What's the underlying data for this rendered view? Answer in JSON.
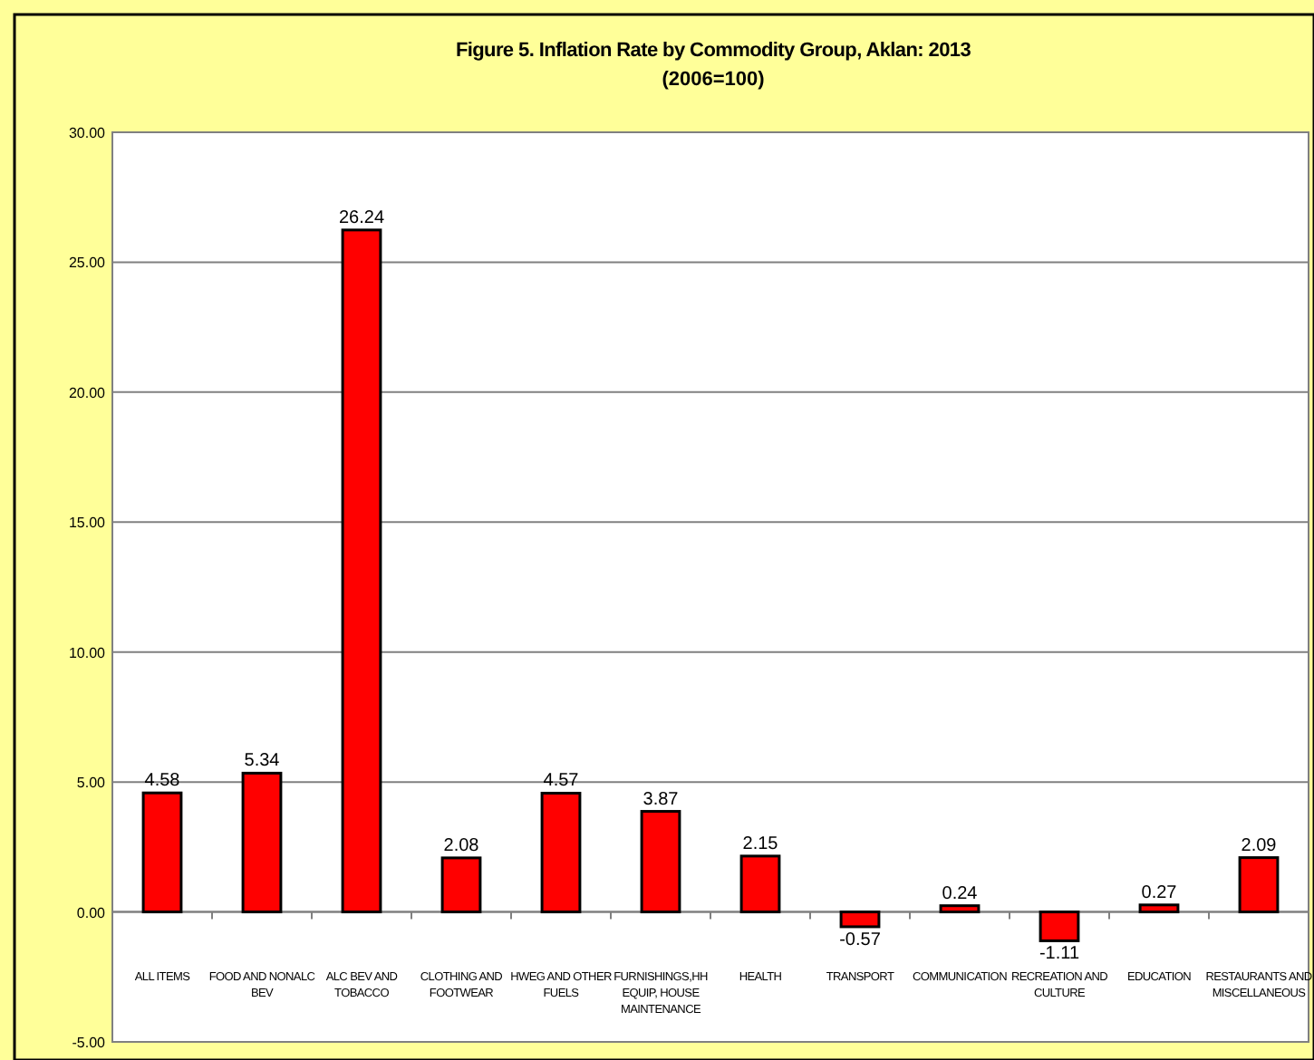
{
  "chart_data": {
    "type": "bar",
    "title": "Figure 5. Inflation Rate by Commodity Group, Aklan: 2013",
    "subtitle": "(2006=100)",
    "categories": [
      "ALL ITEMS",
      "FOOD AND NONALC BEV",
      "ALC BEV AND TOBACCO",
      "CLOTHING AND FOOTWEAR",
      "HWEG AND OTHER FUELS",
      "FURNISHINGS,HH EQUIP, HOUSE MAINTENANCE",
      "HEALTH",
      "TRANSPORT",
      "COMMUNICATION",
      "RECREATION AND CULTURE",
      "EDUCATION",
      "RESTAURANTS AND MISCELLANEOUS"
    ],
    "values": [
      4.58,
      5.34,
      26.24,
      2.08,
      4.57,
      3.87,
      2.15,
      -0.57,
      0.24,
      -1.11,
      0.27,
      2.09
    ],
    "color": "#ff0000",
    "data_labels": true,
    "grid": "y",
    "ylim": [
      -5,
      30
    ],
    "yticks": [
      {
        "value": -5,
        "label": "-5.00"
      },
      {
        "value": 0,
        "label": "0.00"
      },
      {
        "value": 5,
        "label": "5.00"
      },
      {
        "value": 10,
        "label": "10.00"
      },
      {
        "value": 15,
        "label": "15.00"
      },
      {
        "value": 20,
        "label": "20.00"
      },
      {
        "value": 25,
        "label": "25.00"
      },
      {
        "value": 30,
        "label": "30.00"
      }
    ]
  }
}
